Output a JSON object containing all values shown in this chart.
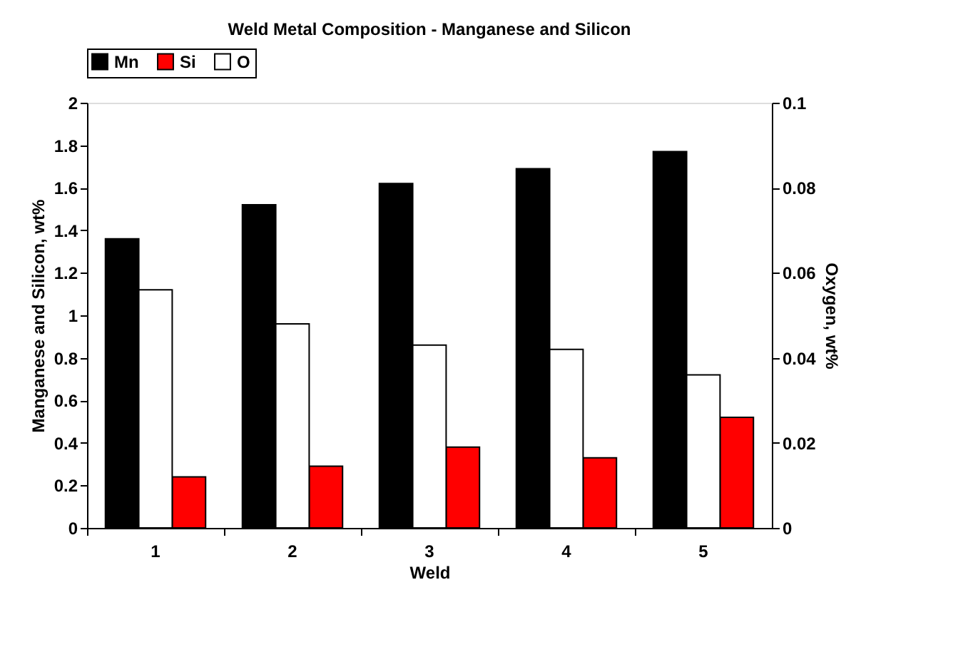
{
  "chart_data": {
    "type": "bar",
    "title": "Weld Metal Composition - Manganese and Silicon",
    "xlabel": "Weld",
    "ylabel": "Manganese and Silicon, wt%",
    "y2label": "Oxygen, wt%",
    "categories": [
      "1",
      "2",
      "3",
      "4",
      "5"
    ],
    "series": [
      {
        "name": "Mn",
        "color": "#000000",
        "values": [
          1.36,
          1.52,
          1.62,
          1.69,
          1.77
        ]
      },
      {
        "name": "Si",
        "color": "#ff0000",
        "values": [
          0.24,
          0.29,
          0.38,
          0.33,
          0.52
        ]
      },
      {
        "name": "O",
        "color": "#ffffff",
        "axis": "y2",
        "values": [
          0.056,
          0.048,
          0.043,
          0.042,
          0.036
        ]
      }
    ],
    "ylim": [
      0,
      2
    ],
    "yticks": [
      0,
      0.2,
      0.4,
      0.6,
      0.8,
      1,
      1.2,
      1.4,
      1.6,
      1.8,
      2
    ],
    "y2lim": [
      0,
      0.1
    ],
    "y2ticks": [
      0,
      0.02,
      0.04,
      0.06,
      0.08,
      0.1
    ],
    "grid": false,
    "legend": "top"
  }
}
